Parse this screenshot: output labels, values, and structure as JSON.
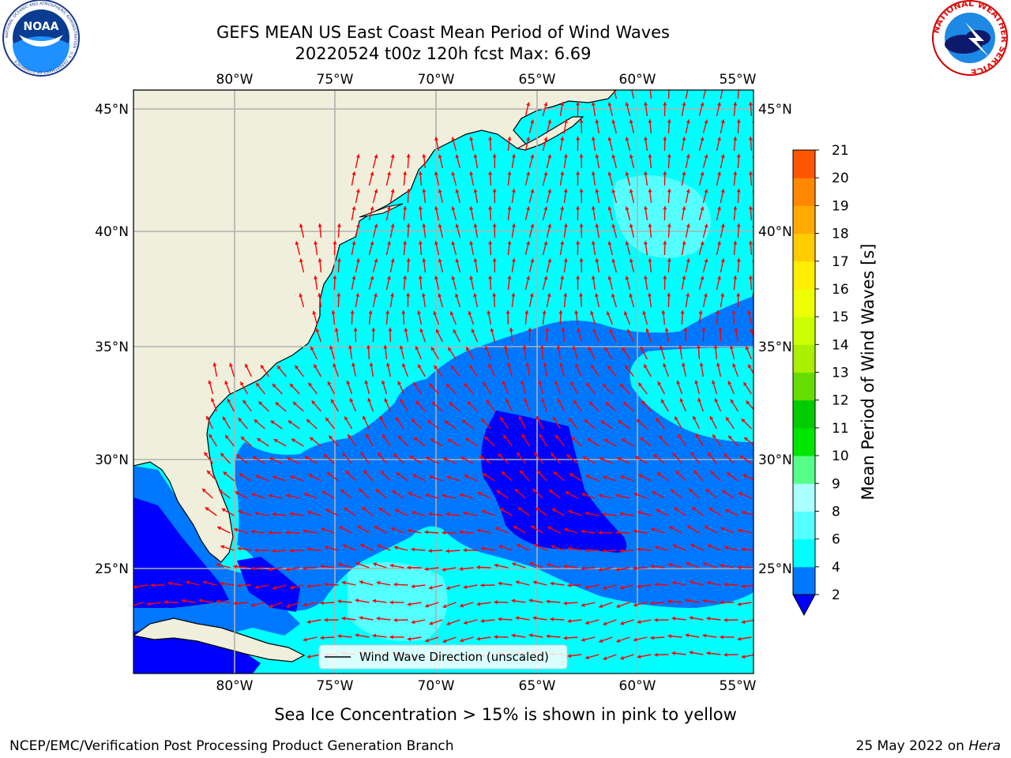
{
  "header": {
    "title": "GEFS MEAN US East Coast Mean Period of Wind Waves",
    "subtitle": "20220524 t00z 120h fcst   Max: 6.69"
  },
  "logos": {
    "left": {
      "name": "noaa-logo",
      "text": "NOAA",
      "ring_text": "NATIONAL OCEANIC AND ATMOSPHERIC ADMINISTRATION · U.S. DEPARTMENT OF COMMERCE"
    },
    "right": {
      "name": "nws-logo",
      "ring_text": "NATIONAL WEATHER SERVICE"
    }
  },
  "map": {
    "lon_labels": [
      "80°W",
      "75°W",
      "70°W",
      "65°W",
      "60°W",
      "55°W"
    ],
    "lat_labels": [
      "45°N",
      "40°N",
      "35°N",
      "30°N",
      "25°N"
    ],
    "legend_label": "Wind Wave Direction (unscaled)",
    "colors": {
      "land": "#efefdc",
      "ocean_cyan": "#00ffff",
      "ocean_light": "#55ffff",
      "ocean_blue": "#0077ff",
      "ocean_deep": "#0000ff",
      "arrow": "#ff0000"
    }
  },
  "colorbar": {
    "label": "Mean Period of Wind Waves [s]",
    "ticks": [
      "2",
      "4",
      "6",
      "8",
      "9",
      "10",
      "11",
      "12",
      "13",
      "14",
      "15",
      "16",
      "17",
      "18",
      "19",
      "20",
      "21"
    ],
    "colors": [
      "#0077ff",
      "#00ffff",
      "#55ffff",
      "#aaffff",
      "#55ff88",
      "#00e600",
      "#00cc00",
      "#66dd00",
      "#aaee00",
      "#ccff00",
      "#eeff00",
      "#ffee00",
      "#ffcc00",
      "#ffaa00",
      "#ff8800",
      "#ff5500",
      "#ff2200",
      "#ff0000"
    ],
    "under_color": "#0000ff"
  },
  "footer": {
    "note": "Sea Ice Concentration > 15% is shown in pink to yellow",
    "credit": "NCEP/EMC/Verification Post Processing Product Generation Branch",
    "date": "25 May 2022 on",
    "machine": "Hera"
  }
}
